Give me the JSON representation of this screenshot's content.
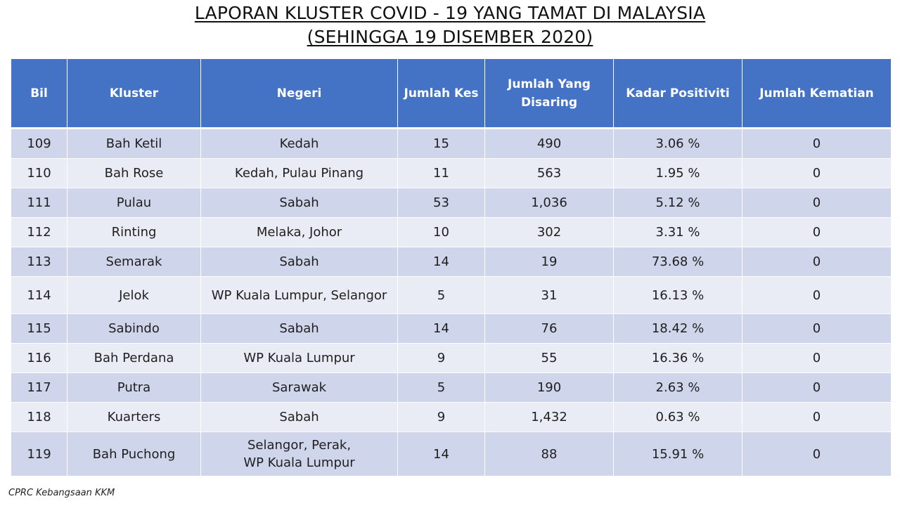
{
  "title": {
    "line1": "LAPORAN KLUSTER COVID - 19 YANG TAMAT DI MALAYSIA",
    "line2": "(SEHINGGA 19 DISEMBER 2020)"
  },
  "table": {
    "headers": [
      "Bil",
      "Kluster",
      "Negeri",
      "Jumlah Kes",
      "Jumlah Yang Disaring",
      "Kadar Positiviti",
      "Jumlah Kematian"
    ],
    "rows": [
      {
        "bil": "109",
        "kluster": "Bah Ketil",
        "negeri": "Kedah",
        "kes": "15",
        "disaring": "490",
        "positiviti": "3.06 %",
        "kematian": "0"
      },
      {
        "bil": "110",
        "kluster": "Bah Rose",
        "negeri": "Kedah, Pulau Pinang",
        "kes": "11",
        "disaring": "563",
        "positiviti": "1.95 %",
        "kematian": "0"
      },
      {
        "bil": "111",
        "kluster": "Pulau",
        "negeri": "Sabah",
        "kes": "53",
        "disaring": "1,036",
        "positiviti": "5.12 %",
        "kematian": "0"
      },
      {
        "bil": "112",
        "kluster": "Rinting",
        "negeri": "Melaka, Johor",
        "kes": "10",
        "disaring": "302",
        "positiviti": "3.31 %",
        "kematian": "0"
      },
      {
        "bil": "113",
        "kluster": "Semarak",
        "negeri": "Sabah",
        "kes": "14",
        "disaring": "19",
        "positiviti": "73.68 %",
        "kematian": "0"
      },
      {
        "bil": "114",
        "kluster": "Jelok",
        "negeri": "WP Kuala Lumpur, Selangor",
        "kes": "5",
        "disaring": "31",
        "positiviti": "16.13 %",
        "kematian": "0"
      },
      {
        "bil": "115",
        "kluster": "Sabindo",
        "negeri": "Sabah",
        "kes": "14",
        "disaring": "76",
        "positiviti": "18.42 %",
        "kematian": "0"
      },
      {
        "bil": "116",
        "kluster": "Bah Perdana",
        "negeri": "WP Kuala Lumpur",
        "kes": "9",
        "disaring": "55",
        "positiviti": "16.36 %",
        "kematian": "0"
      },
      {
        "bil": "117",
        "kluster": "Putra",
        "negeri": "Sarawak",
        "kes": "5",
        "disaring": "190",
        "positiviti": "2.63 %",
        "kematian": "0"
      },
      {
        "bil": "118",
        "kluster": "Kuarters",
        "negeri": "Sabah",
        "kes": "9",
        "disaring": "1,432",
        "positiviti": "0.63 %",
        "kematian": "0"
      },
      {
        "bil": "119",
        "kluster": "Bah Puchong",
        "negeri": "Selangor, Perak, WP Kuala Lumpur",
        "kes": "14",
        "disaring": "88",
        "positiviti": "15.91 %",
        "kematian": "0"
      }
    ]
  },
  "footer": {
    "source": "CPRC Kebangsaan KKM"
  },
  "colors": {
    "header_bg": "#4472c4",
    "row_odd": "#cfd5ea",
    "row_even": "#e9ebf5"
  }
}
